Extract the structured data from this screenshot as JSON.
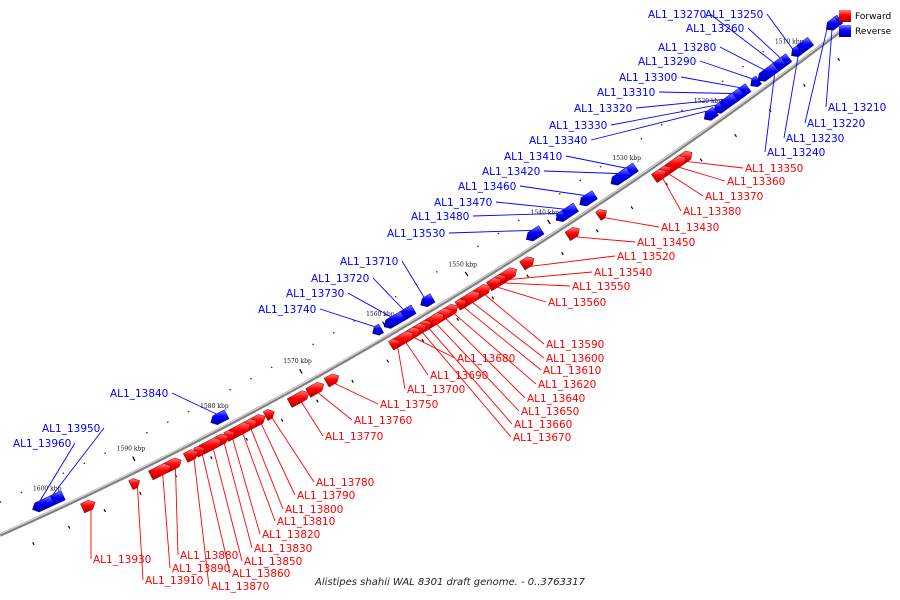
{
  "caption": "Alistipes shahii WAL 8301 draft genome. - 0..3763317",
  "legend": [
    {
      "label": "Forward",
      "color": "#ff0000"
    },
    {
      "label": "Reverse",
      "color": "#0000ff"
    }
  ],
  "colors": {
    "forward": "#ff0000",
    "reverse": "#0000ff",
    "backbone": "#808080"
  },
  "ticks": [
    {
      "label": "1510 kbp",
      "kbp": 1510
    },
    {
      "label": "1520 kbp",
      "kbp": 1520
    },
    {
      "label": "1530 kbp",
      "kbp": 1530
    },
    {
      "label": "1540 kbp",
      "kbp": 1540
    },
    {
      "label": "1550 kbp",
      "kbp": 1550
    },
    {
      "label": "1560 kbp",
      "kbp": 1560
    },
    {
      "label": "1570 kbp",
      "kbp": 1570
    },
    {
      "label": "1580 kbp",
      "kbp": 1580
    },
    {
      "label": "1590 kbp",
      "kbp": 1590
    },
    {
      "label": "1600 kbp",
      "kbp": 1600
    }
  ],
  "genes": [
    {
      "name": "AL1_13210",
      "strand": "reverse",
      "kbp": 1503.0
    },
    {
      "name": "AL1_13220",
      "strand": "reverse",
      "kbp": 1505.5
    },
    {
      "name": "AL1_13230",
      "strand": "reverse",
      "kbp": 1509.0
    },
    {
      "name": "AL1_13240",
      "strand": "reverse",
      "kbp": 1512.0
    },
    {
      "name": "AL1_13250",
      "strand": "reverse",
      "kbp": 1510.0
    },
    {
      "name": "AL1_13260",
      "strand": "reverse",
      "kbp": 1511.5
    },
    {
      "name": "AL1_13270",
      "strand": "reverse",
      "kbp": 1512.3
    },
    {
      "name": "AL1_13280",
      "strand": "reverse",
      "kbp": 1513.5
    },
    {
      "name": "AL1_13290",
      "strand": "reverse",
      "kbp": 1515.0
    },
    {
      "name": "AL1_13300",
      "strand": "reverse",
      "kbp": 1516.5
    },
    {
      "name": "AL1_13310",
      "strand": "reverse",
      "kbp": 1517.5
    },
    {
      "name": "AL1_13320",
      "strand": "reverse",
      "kbp": 1518.5
    },
    {
      "name": "AL1_13330",
      "strand": "reverse",
      "kbp": 1519.5
    },
    {
      "name": "AL1_13340",
      "strand": "reverse",
      "kbp": 1520.5
    },
    {
      "name": "AL1_13350",
      "strand": "forward",
      "kbp": 1525.0
    },
    {
      "name": "AL1_13360",
      "strand": "forward",
      "kbp": 1526.0
    },
    {
      "name": "AL1_13370",
      "strand": "forward",
      "kbp": 1527.2
    },
    {
      "name": "AL1_13380",
      "strand": "forward",
      "kbp": 1528.0
    },
    {
      "name": "AL1_13410",
      "strand": "reverse",
      "kbp": 1530.5
    },
    {
      "name": "AL1_13420",
      "strand": "reverse",
      "kbp": 1531.5
    },
    {
      "name": "AL1_13430",
      "strand": "forward",
      "kbp": 1535.0
    },
    {
      "name": "AL1_13450",
      "strand": "forward",
      "kbp": 1538.5
    },
    {
      "name": "AL1_13460",
      "strand": "reverse",
      "kbp": 1535.5
    },
    {
      "name": "AL1_13470",
      "strand": "reverse",
      "kbp": 1538.0
    },
    {
      "name": "AL1_13480",
      "strand": "reverse",
      "kbp": 1538.8
    },
    {
      "name": "AL1_13520",
      "strand": "forward",
      "kbp": 1544.0
    },
    {
      "name": "AL1_13530",
      "strand": "reverse",
      "kbp": 1542.0
    },
    {
      "name": "AL1_13540",
      "strand": "forward",
      "kbp": 1546.5
    },
    {
      "name": "AL1_13550",
      "strand": "forward",
      "kbp": 1547.2
    },
    {
      "name": "AL1_13560",
      "strand": "forward",
      "kbp": 1548.0
    },
    {
      "name": "AL1_13590",
      "strand": "forward",
      "kbp": 1549.5
    },
    {
      "name": "AL1_13600",
      "strand": "forward",
      "kbp": 1551.0
    },
    {
      "name": "AL1_13610",
      "strand": "forward",
      "kbp": 1552.0
    },
    {
      "name": "AL1_13620",
      "strand": "forward",
      "kbp": 1553.2
    },
    {
      "name": "AL1_13640",
      "strand": "forward",
      "kbp": 1554.2
    },
    {
      "name": "AL1_13650",
      "strand": "forward",
      "kbp": 1555.3
    },
    {
      "name": "AL1_13660",
      "strand": "forward",
      "kbp": 1556.2
    },
    {
      "name": "AL1_13670",
      "strand": "forward",
      "kbp": 1557.0
    },
    {
      "name": "AL1_13680",
      "strand": "forward",
      "kbp": 1558.0
    },
    {
      "name": "AL1_13690",
      "strand": "forward",
      "kbp": 1559.0
    },
    {
      "name": "AL1_13700",
      "strand": "forward",
      "kbp": 1560.0
    },
    {
      "name": "AL1_13710",
      "strand": "reverse",
      "kbp": 1555.0
    },
    {
      "name": "AL1_13720",
      "strand": "reverse",
      "kbp": 1557.5
    },
    {
      "name": "AL1_13730",
      "strand": "reverse",
      "kbp": 1559.0
    },
    {
      "name": "AL1_13740",
      "strand": "reverse",
      "kbp": 1561.0
    },
    {
      "name": "AL1_13750",
      "strand": "forward",
      "kbp": 1567.5
    },
    {
      "name": "AL1_13760",
      "strand": "forward",
      "kbp": 1569.5
    },
    {
      "name": "AL1_13770",
      "strand": "forward",
      "kbp": 1571.5
    },
    {
      "name": "AL1_13780",
      "strand": "forward",
      "kbp": 1575.0
    },
    {
      "name": "AL1_13790",
      "strand": "forward",
      "kbp": 1576.3
    },
    {
      "name": "AL1_13800",
      "strand": "forward",
      "kbp": 1577.5
    },
    {
      "name": "AL1_13810",
      "strand": "forward",
      "kbp": 1578.5
    },
    {
      "name": "AL1_13820",
      "strand": "forward",
      "kbp": 1579.7
    },
    {
      "name": "AL1_13830",
      "strand": "forward",
      "kbp": 1580.7
    },
    {
      "name": "AL1_13840",
      "strand": "reverse",
      "kbp": 1580.0
    },
    {
      "name": "AL1_13850",
      "strand": "forward",
      "kbp": 1582.0
    },
    {
      "name": "AL1_13860",
      "strand": "forward",
      "kbp": 1583.3
    },
    {
      "name": "AL1_13870",
      "strand": "forward",
      "kbp": 1584.3
    },
    {
      "name": "AL1_13880",
      "strand": "forward",
      "kbp": 1586.5
    },
    {
      "name": "AL1_13890",
      "strand": "forward",
      "kbp": 1588.0
    },
    {
      "name": "AL1_13910",
      "strand": "forward",
      "kbp": 1591.0
    },
    {
      "name": "AL1_13930",
      "strand": "forward",
      "kbp": 1596.5
    },
    {
      "name": "AL1_13950",
      "strand": "reverse",
      "kbp": 1599.5
    },
    {
      "name": "AL1_13960",
      "strand": "reverse",
      "kbp": 1601.0
    }
  ]
}
